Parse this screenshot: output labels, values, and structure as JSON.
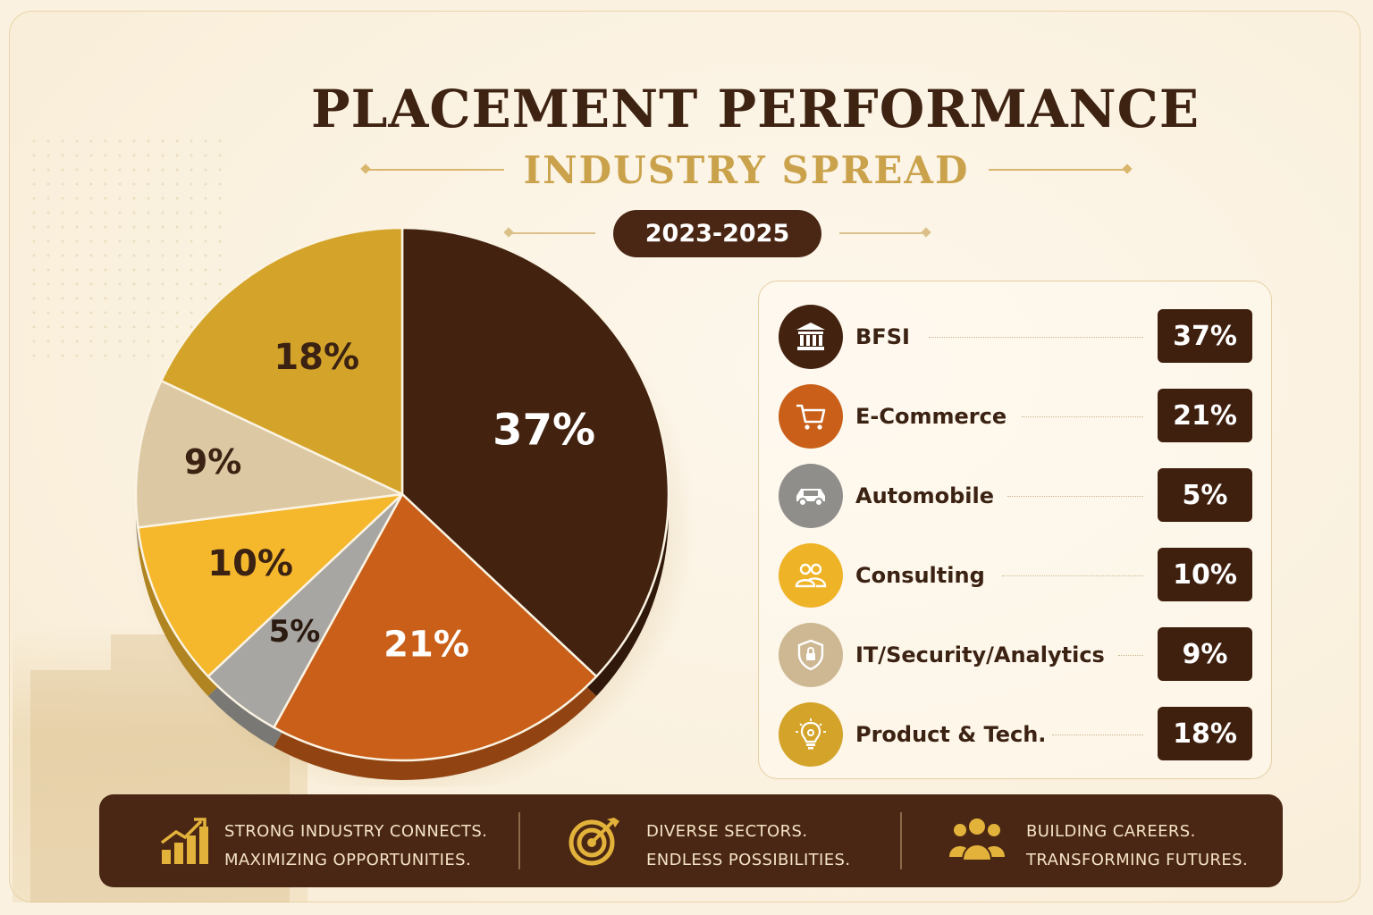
{
  "title": "PLACEMENT PERFORMANCE",
  "subtitle": "INDUSTRY SPREAD",
  "period": "2023-2025",
  "colors": {
    "brown": "#43220f",
    "orange": "#c95f18",
    "gray": "#a8a6a2",
    "yellow": "#f5b82c",
    "beige": "#dcc8a2",
    "gold": "#d4a42a"
  },
  "chart_data": {
    "type": "pie",
    "title": "PLACEMENT PERFORMANCE",
    "subtitle": "INDUSTRY SPREAD",
    "categories": [
      "BFSI",
      "E-Commerce",
      "Automobile",
      "Consulting",
      "IT/Security/Analytics",
      "Product & Tech."
    ],
    "values": [
      37,
      21,
      5,
      10,
      9,
      18
    ],
    "data_labels": [
      "37%",
      "21%",
      "5%",
      "10%",
      "9%",
      "18%"
    ],
    "colors": [
      "#43220f",
      "#c95f18",
      "#a8a6a2",
      "#f5b82c",
      "#dcc8a2",
      "#d4a42a"
    ],
    "start": "12 o'clock",
    "direction": "clockwise",
    "legend_position": "right"
  },
  "legend": [
    {
      "label": "BFSI",
      "value": "37%",
      "icon": "bank-icon",
      "color": "#43220f"
    },
    {
      "label": "E-Commerce",
      "value": "21%",
      "icon": "shopping-cart-icon",
      "color": "#c95f18"
    },
    {
      "label": "Automobile",
      "value": "5%",
      "icon": "car-icon",
      "color": "#8f8e8b"
    },
    {
      "label": "Consulting",
      "value": "10%",
      "icon": "people-icon",
      "color": "#efb327"
    },
    {
      "label": "IT/Security/Analytics",
      "value": "9%",
      "icon": "shield-lock-icon",
      "color": "#cdb893"
    },
    {
      "label": "Product & Tech.",
      "value": "18%",
      "icon": "lightbulb-icon",
      "color": "#d4a42a"
    }
  ],
  "footer": [
    {
      "line1": "STRONG INDUSTRY CONNECTS.",
      "line2": "MAXIMIZING OPPORTUNITIES.",
      "icon": "growth-chart-icon"
    },
    {
      "line1": "DIVERSE SECTORS.",
      "line2": "ENDLESS POSSIBILITIES.",
      "icon": "target-icon"
    },
    {
      "line1": "BUILDING CAREERS.",
      "line2": "TRANSFORMING FUTURES.",
      "icon": "team-icon"
    }
  ]
}
